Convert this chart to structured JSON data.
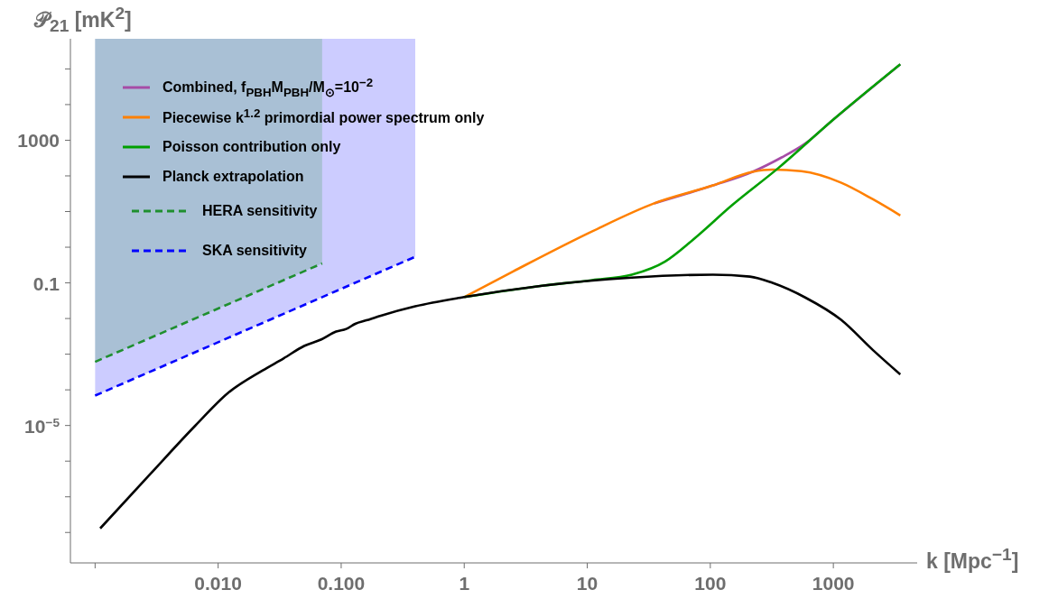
{
  "chart_data": {
    "type": "line",
    "ylabel": "𝒫$_{21}$ [mK$^{2}$]",
    "xlabel": "k [Mpc$^{−1}$]",
    "log": "xy",
    "legend": "top left",
    "marker": "none",
    "line_style": "solid",
    "xlim": [
      0.00063,
      4800
    ],
    "ylim": [
      1.4e-09,
      700000
    ],
    "xticks": [
      {
        "value": 0.001,
        "label": null
      },
      {
        "value": 0.01,
        "label": "0.010"
      },
      {
        "value": 0.1,
        "label": "0.100"
      },
      1,
      10,
      100,
      1000
    ],
    "yticks": [
      {
        "value": 1e-08,
        "label": null
      },
      {
        "value": 1e-07,
        "label": null
      },
      {
        "value": 1e-06,
        "label": null
      },
      {
        "value": 1e-05,
        "label": "10$^{−5}$"
      },
      {
        "value": 0.0001,
        "label": null
      },
      {
        "value": 0.001,
        "label": null
      },
      {
        "value": 0.01,
        "label": null
      },
      0.1,
      {
        "value": 1,
        "label": null
      },
      {
        "value": 10,
        "label": null
      },
      {
        "value": 100,
        "label": null
      },
      1000,
      {
        "value": 10000.0,
        "label": null
      },
      {
        "value": 100000.0,
        "label": null
      }
    ],
    "series": [
      {
        "name": "Combined, f$_{PBH}$M$_{PBH}$/M$_{⊙}$=10$^{−2}$",
        "color": "#a64ca6",
        "x": [
          35,
          105,
          220,
          380,
          590,
          1000,
          3500
        ],
        "values": [
          17,
          54,
          130,
          330,
          810,
          3800,
          135000
        ]
      },
      {
        "name": "Piecewise k$^{1.2}$ primordial power spectrum only",
        "color": "#ff8000",
        "x": [
          1,
          2.5,
          11,
          35,
          105,
          220,
          320,
          550,
          1150,
          2100,
          3500
        ],
        "values": [
          0.04,
          0.21,
          2.8,
          17,
          54,
          130,
          150,
          135,
          65,
          22,
          7.8
        ]
      },
      {
        "name": "Poisson contribution only",
        "color": "#00a000",
        "x": [
          1,
          4.3,
          11,
          23,
          43,
          72,
          150,
          360,
          1000,
          3500
        ],
        "values": [
          0.04,
          0.083,
          0.12,
          0.17,
          0.4,
          1.6,
          15,
          170,
          3800,
          135000
        ]
      },
      {
        "name": "Planck extrapolation",
        "color": "#000000",
        "x": [
          0.0011,
          0.0028,
          0.0065,
          0.012,
          0.023,
          0.034,
          0.05,
          0.069,
          0.091,
          0.11,
          0.13,
          0.16,
          0.21,
          0.4,
          1,
          4.3,
          23,
          105,
          210,
          320,
          590,
          1150,
          2100,
          3500
        ],
        "values": [
          1.3e-08,
          4.3e-07,
          9.8e-06,
          8.1e-05,
          0.00035,
          0.00076,
          0.0017,
          0.0026,
          0.0043,
          0.0051,
          0.0071,
          0.0089,
          0.012,
          0.022,
          0.04,
          0.083,
          0.14,
          0.17,
          0.15,
          0.1,
          0.039,
          0.0093,
          0.0013,
          0.00027
        ]
      },
      {
        "name": "HERA sensitivity",
        "color": "#1f8f2f",
        "line_style": "dashed",
        "x": [
          0.001,
          0.07
        ],
        "values": [
          0.00061,
          0.35
        ],
        "lower": [
          0.00061,
          0.35
        ],
        "upper": [
          700000,
          700000
        ]
      },
      {
        "name": "SKA sensitivity",
        "color": "#0000ff",
        "line_style": "dashed",
        "x": [
          0.001,
          0.4
        ],
        "values": [
          6.9e-05,
          0.54
        ],
        "lower": [
          6.9e-05,
          0.54
        ],
        "upper": [
          700000,
          700000
        ]
      }
    ]
  }
}
